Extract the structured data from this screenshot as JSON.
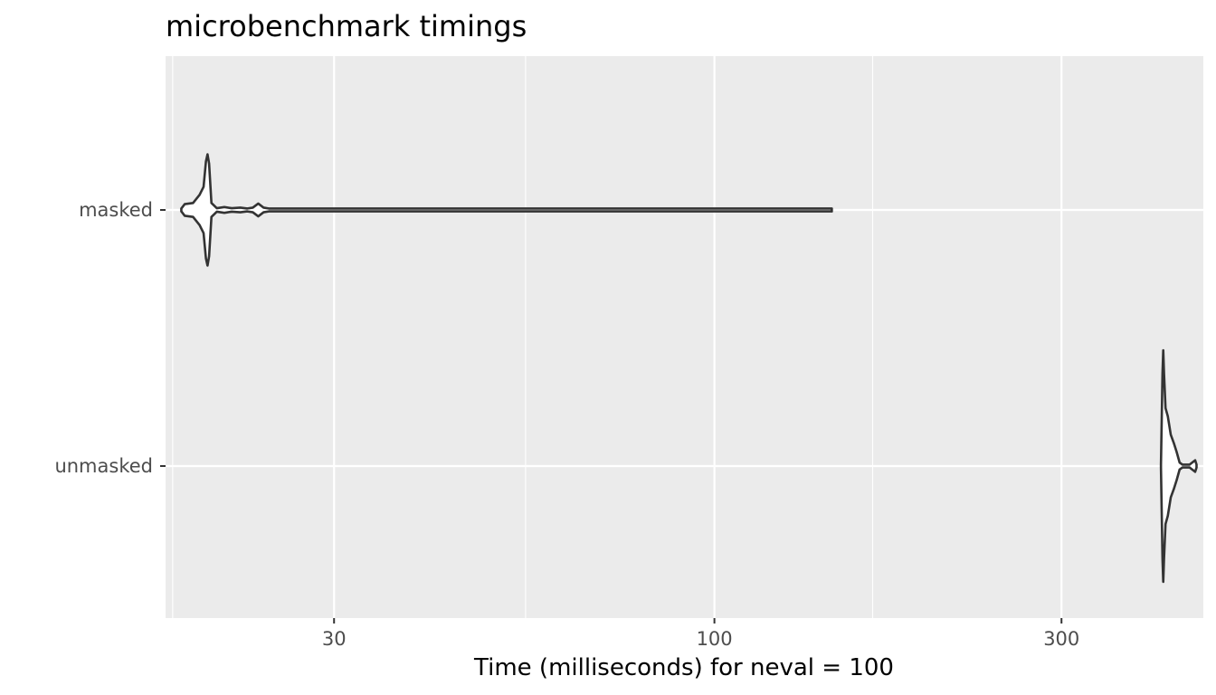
{
  "chart_data": {
    "type": "violin",
    "title": "microbenchmark timings",
    "xlabel": "Time (milliseconds) for neval = 100",
    "ylabel": "",
    "x_scale": "log10",
    "xlim": [
      17.6,
      470
    ],
    "x_ticks": [
      {
        "value": 30,
        "label": "30"
      },
      {
        "value": 100,
        "label": "100"
      },
      {
        "value": 300,
        "label": "300"
      }
    ],
    "x_minor_ticks": [
      18,
      55,
      165
    ],
    "categories": [
      "masked",
      "unmasked"
    ],
    "series": [
      {
        "name": "masked",
        "min": 18.5,
        "max": 145,
        "profile": [
          [
            18.5,
            0.01
          ],
          [
            18.7,
            0.05
          ],
          [
            19.2,
            0.06
          ],
          [
            19.6,
            0.13
          ],
          [
            19.85,
            0.2
          ],
          [
            20.0,
            0.42
          ],
          [
            20.1,
            0.48
          ],
          [
            20.2,
            0.4
          ],
          [
            20.35,
            0.06
          ],
          [
            20.7,
            0.015
          ],
          [
            21.2,
            0.025
          ],
          [
            21.7,
            0.015
          ],
          [
            22.3,
            0.02
          ],
          [
            22.8,
            0.005
          ],
          [
            23.2,
            0.02
          ],
          [
            23.6,
            0.055
          ],
          [
            24.0,
            0.02
          ],
          [
            24.4,
            0.008
          ],
          [
            30,
            0.005
          ],
          [
            60,
            0.005
          ],
          [
            100,
            0.005
          ],
          [
            145,
            0.005
          ]
        ]
      },
      {
        "name": "unmasked",
        "min": 411,
        "max": 460,
        "profile": [
          [
            411,
            0.005
          ],
          [
            412,
            0.4
          ],
          [
            413,
            0.8
          ],
          [
            414,
            1.0
          ],
          [
            415,
            0.8
          ],
          [
            417,
            0.5
          ],
          [
            420,
            0.43
          ],
          [
            424,
            0.27
          ],
          [
            428,
            0.2
          ],
          [
            432,
            0.12
          ],
          [
            436,
            0.03
          ],
          [
            440,
            0.01
          ],
          [
            450,
            0.01
          ],
          [
            458,
            0.05
          ],
          [
            460,
            0.005
          ]
        ]
      }
    ],
    "grid": true,
    "legend": "none"
  }
}
